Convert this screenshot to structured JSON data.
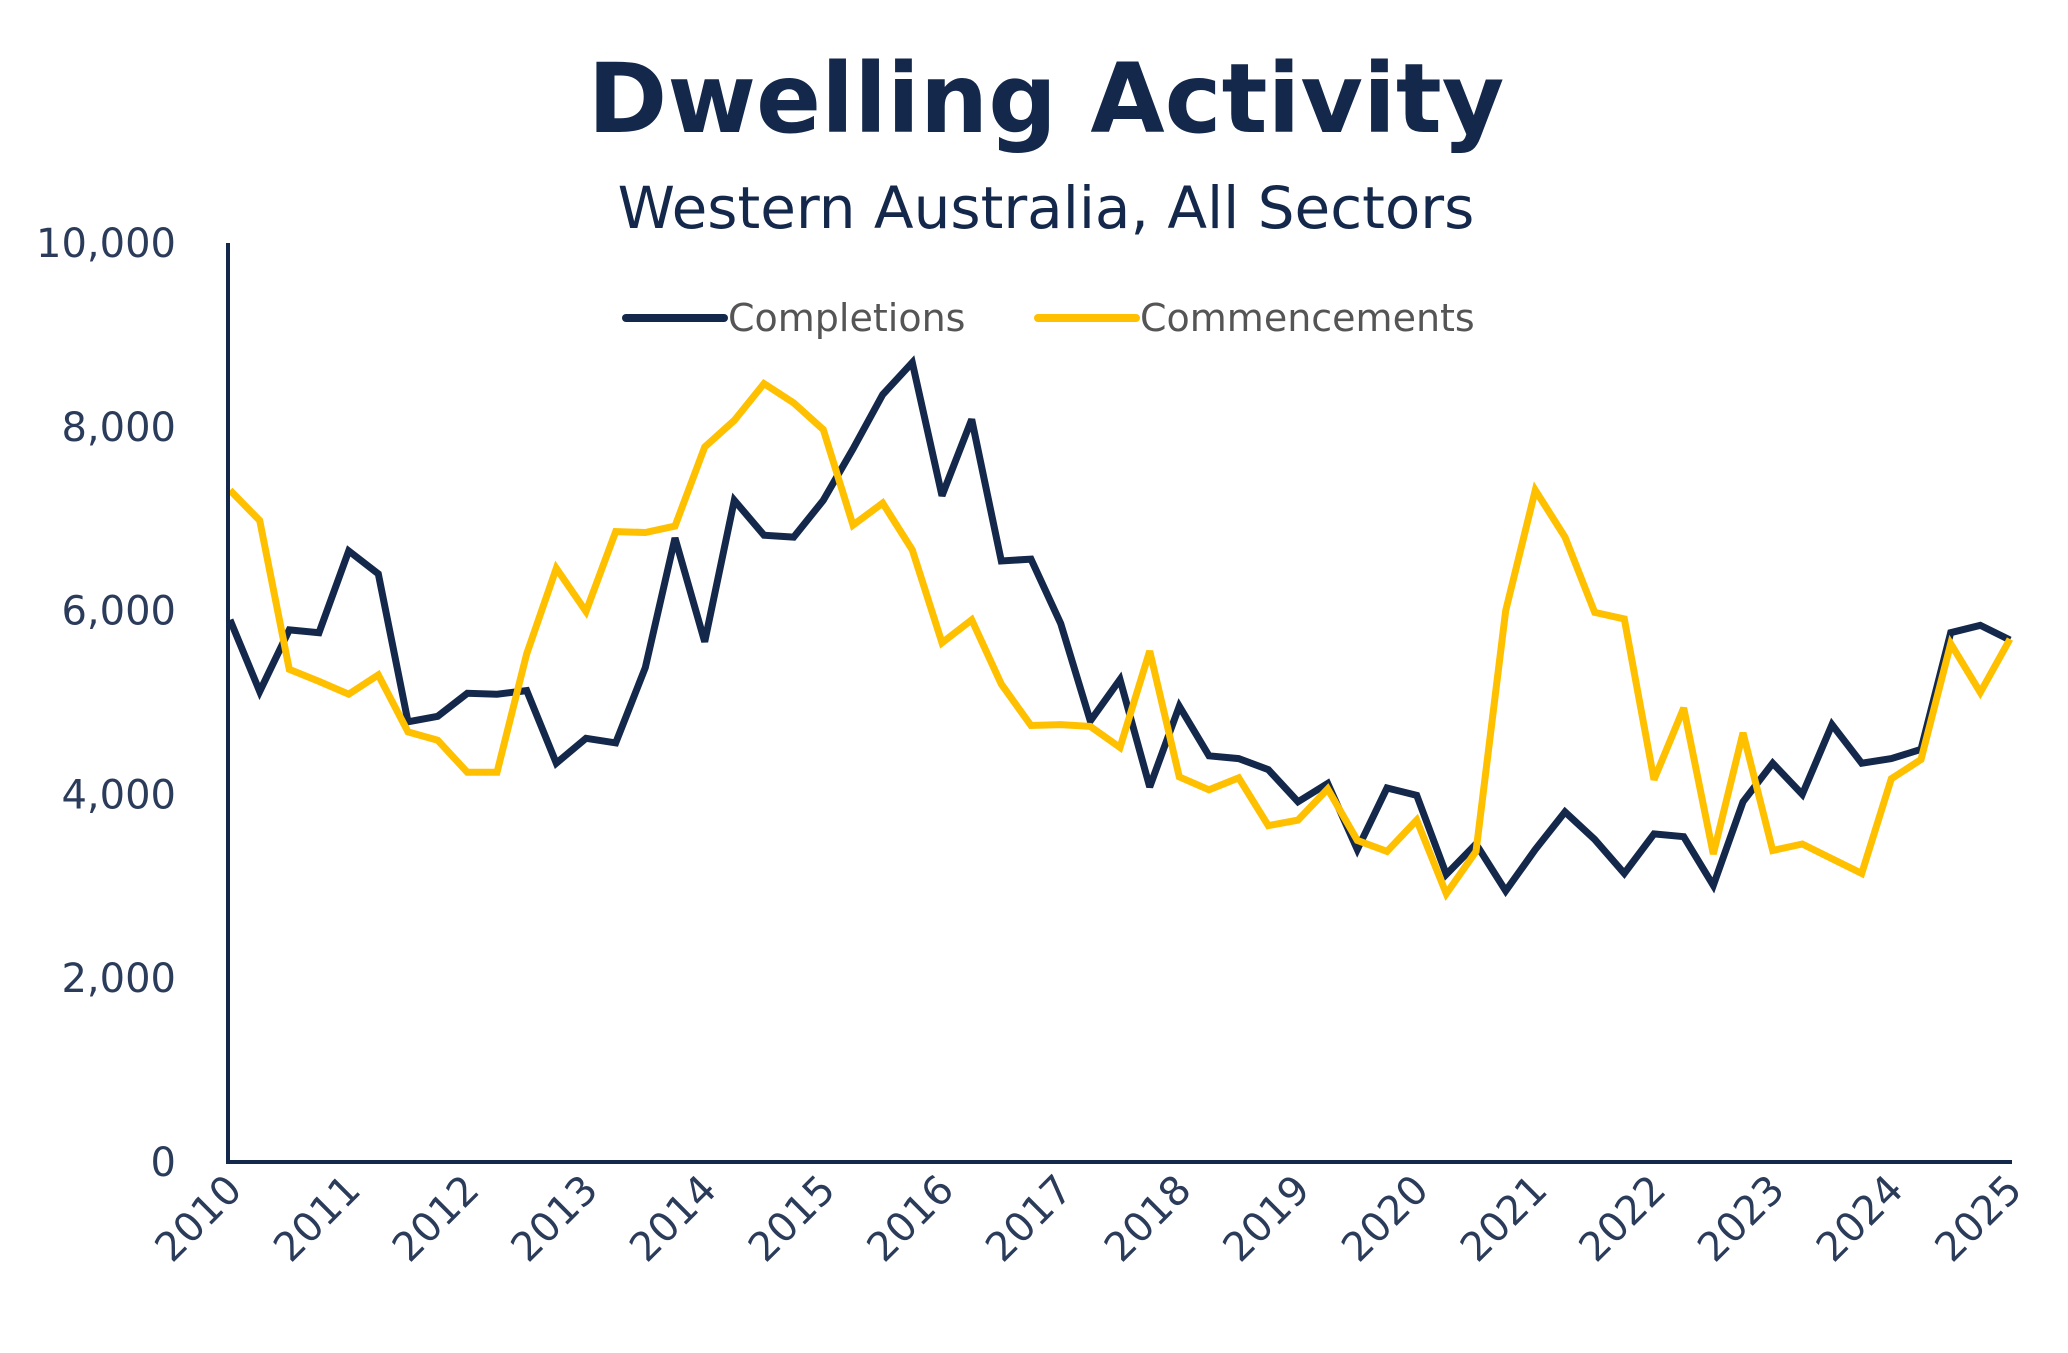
{
  "chart_data": {
    "type": "line",
    "title": "Dwelling Activity",
    "subtitle": "Western Australia, All Sectors",
    "xlabel": "",
    "ylabel": "",
    "ylim": [
      0,
      10000
    ],
    "y_ticks": [
      "0",
      "2,000",
      "4,000",
      "6,000",
      "8,000",
      "10,000"
    ],
    "x_ticks": [
      "2010",
      "2011",
      "2012",
      "2013",
      "2014",
      "2015",
      "2016",
      "2017",
      "2018",
      "2019",
      "2020",
      "2021",
      "2022",
      "2023",
      "2024",
      "2025"
    ],
    "x_range": [
      2010,
      2025
    ],
    "legend_position": "top-center",
    "grid": false,
    "x": [
      2010.0,
      2010.25,
      2010.5,
      2010.75,
      2011.0,
      2011.25,
      2011.5,
      2011.75,
      2012.0,
      2012.25,
      2012.5,
      2012.75,
      2013.0,
      2013.25,
      2013.5,
      2013.75,
      2014.0,
      2014.25,
      2014.5,
      2014.75,
      2015.0,
      2015.25,
      2015.5,
      2015.75,
      2016.0,
      2016.25,
      2016.5,
      2016.75,
      2017.0,
      2017.25,
      2017.5,
      2017.75,
      2018.0,
      2018.25,
      2018.5,
      2018.75,
      2019.0,
      2019.25,
      2019.5,
      2019.75,
      2020.0,
      2020.25,
      2020.5,
      2020.75,
      2021.0,
      2021.25,
      2021.5,
      2021.75,
      2022.0,
      2022.25,
      2022.5,
      2022.75,
      2023.0,
      2023.25,
      2023.5,
      2023.75,
      2024.0,
      2024.25,
      2024.5,
      2024.75,
      2025.0
    ],
    "series": [
      {
        "name": "Completions",
        "color": "#14284b",
        "values": [
          5900,
          5120,
          5790,
          5760,
          6650,
          6400,
          4790,
          4850,
          5100,
          5090,
          5130,
          4340,
          4610,
          4560,
          5380,
          6790,
          5660,
          7200,
          6820,
          6800,
          7200,
          7760,
          8350,
          8700,
          7250,
          8080,
          6540,
          6560,
          5860,
          4800,
          5250,
          4080,
          4960,
          4420,
          4390,
          4270,
          3920,
          4120,
          3400,
          4070,
          3990,
          3130,
          3460,
          2950,
          3400,
          3810,
          3510,
          3140,
          3570,
          3540,
          3010,
          3920,
          4340,
          4000,
          4760,
          4340,
          4390,
          4490,
          5760,
          5840,
          5680
        ]
      },
      {
        "name": "Commencements",
        "color": "#ffc000",
        "values": [
          7310,
          6980,
          5360,
          5230,
          5090,
          5300,
          4680,
          4590,
          4240,
          4240,
          5530,
          6460,
          5990,
          6860,
          6850,
          6920,
          7780,
          8070,
          8470,
          8260,
          7970,
          6930,
          7170,
          6660,
          5650,
          5900,
          5200,
          4750,
          4760,
          4740,
          4510,
          5560,
          4190,
          4050,
          4180,
          3660,
          3720,
          4060,
          3500,
          3380,
          3720,
          2920,
          3380,
          6000,
          7310,
          6800,
          5980,
          5910,
          4160,
          4940,
          3350,
          4670,
          3390,
          3460,
          3300,
          3140,
          4170,
          4380,
          5640,
          5110,
          5690
        ]
      }
    ]
  }
}
